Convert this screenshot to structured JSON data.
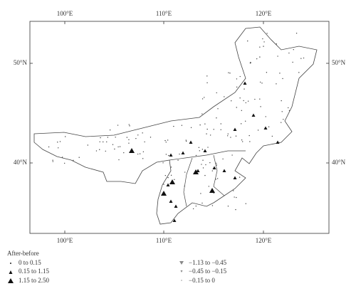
{
  "map": {
    "lon_labels": [
      "100°E",
      "110°E",
      "120°E"
    ],
    "lat_labels": [
      "50°N",
      "40°N"
    ],
    "legend": {
      "title": "After-before",
      "items": [
        "0 to 0.15",
        "0.15 to 1.15",
        "1.15 to 2.50",
        "−1.13 to −0.45",
        "−0.45 to −0.15",
        "−0.15 to 0"
      ]
    }
  }
}
